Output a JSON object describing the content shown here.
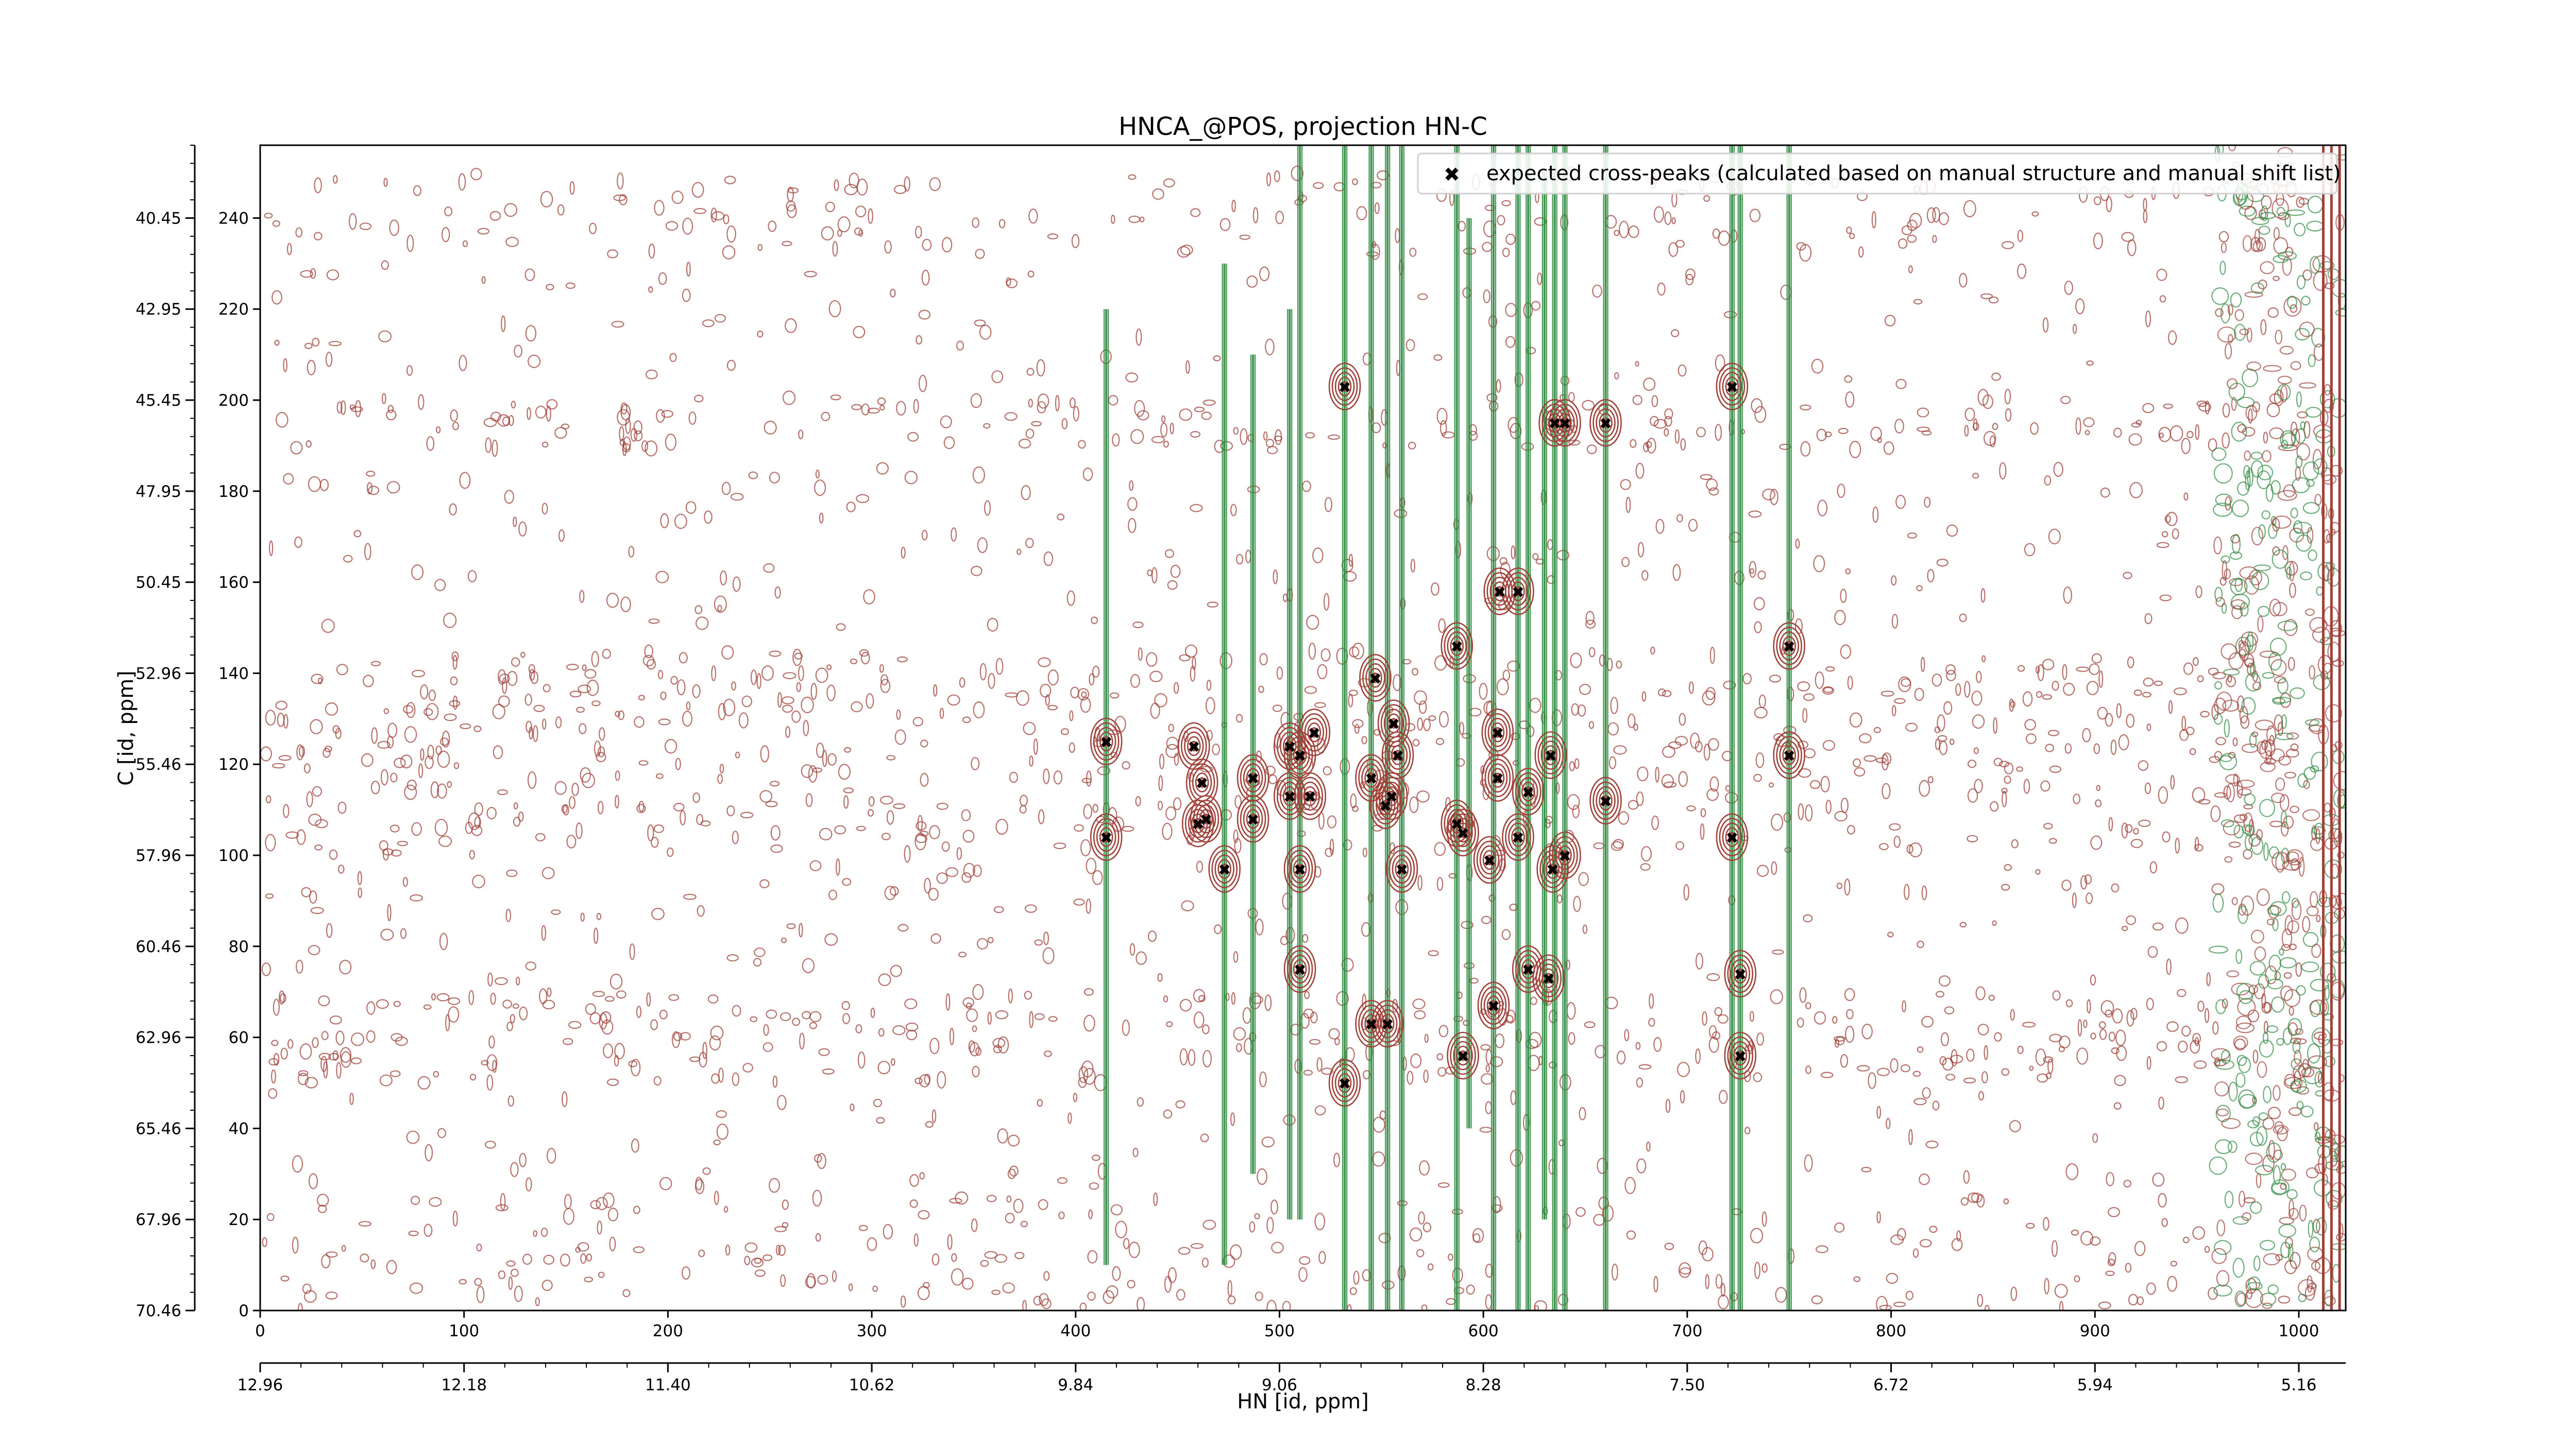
{
  "chart_data": {
    "type": "scatter",
    "title": "HNCA_@POS, projection HN-C",
    "xlabel": "HN [id, ppm]",
    "ylabel": "C [id, ppm]",
    "xlim": [
      0,
      1023
    ],
    "ylim": [
      0,
      256
    ],
    "x_ticks": [
      "0",
      "100",
      "200",
      "300",
      "400",
      "500",
      "600",
      "700",
      "800",
      "900",
      "1000"
    ],
    "y_ticks": [
      "0",
      "20",
      "40",
      "60",
      "80",
      "100",
      "120",
      "140",
      "160",
      "180",
      "200",
      "220",
      "240"
    ],
    "x_ppm_ticks": [
      "12.96",
      "12.18",
      "11.40",
      "10.62",
      "9.84",
      "9.06",
      "8.28",
      "7.50",
      "6.72",
      "5.94",
      "5.16"
    ],
    "y_ppm_ticks": [
      "70.46",
      "67.96",
      "65.46",
      "62.96",
      "60.46",
      "57.96",
      "55.46",
      "52.96",
      "50.45",
      "47.95",
      "45.45",
      "42.95",
      "40.45"
    ],
    "legend": "top-right",
    "series": [
      {
        "name": "expected cross-peaks (calculated based on manual structure and manual shift list)",
        "color": "#0000ff",
        "marker": "x",
        "points": [
          [
            415,
            125
          ],
          [
            415,
            104
          ],
          [
            458,
            124
          ],
          [
            462,
            116
          ],
          [
            460,
            107
          ],
          [
            464,
            108
          ],
          [
            473,
            97
          ],
          [
            487,
            117
          ],
          [
            487,
            108
          ],
          [
            505,
            124
          ],
          [
            510,
            122
          ],
          [
            505,
            113
          ],
          [
            515,
            113
          ],
          [
            517,
            127
          ],
          [
            510,
            97
          ],
          [
            510,
            75
          ],
          [
            532,
            203
          ],
          [
            532,
            50
          ],
          [
            545,
            117
          ],
          [
            547,
            139
          ],
          [
            552,
            111
          ],
          [
            555,
            113
          ],
          [
            556,
            129
          ],
          [
            558,
            122
          ],
          [
            560,
            97
          ],
          [
            545,
            63
          ],
          [
            553,
            63
          ],
          [
            587,
            146
          ],
          [
            587,
            107
          ],
          [
            590,
            105
          ],
          [
            590,
            56
          ],
          [
            603,
            99
          ],
          [
            605,
            67
          ],
          [
            607,
            127
          ],
          [
            607,
            117
          ],
          [
            608,
            158
          ],
          [
            617,
            158
          ],
          [
            617,
            104
          ],
          [
            622,
            114
          ],
          [
            622,
            75
          ],
          [
            632,
            73
          ],
          [
            633,
            122
          ],
          [
            634,
            97
          ],
          [
            635,
            195
          ],
          [
            640,
            195
          ],
          [
            640,
            100
          ],
          [
            660,
            195
          ],
          [
            660,
            112
          ],
          [
            722,
            203
          ],
          [
            722,
            104
          ],
          [
            726,
            74
          ],
          [
            726,
            56
          ],
          [
            750,
            146
          ],
          [
            750,
            122
          ]
        ]
      }
    ]
  },
  "colors": {
    "positive_contours": "#a0413a",
    "negative_contours": "#2f8a40",
    "markers": "#0000ff"
  }
}
